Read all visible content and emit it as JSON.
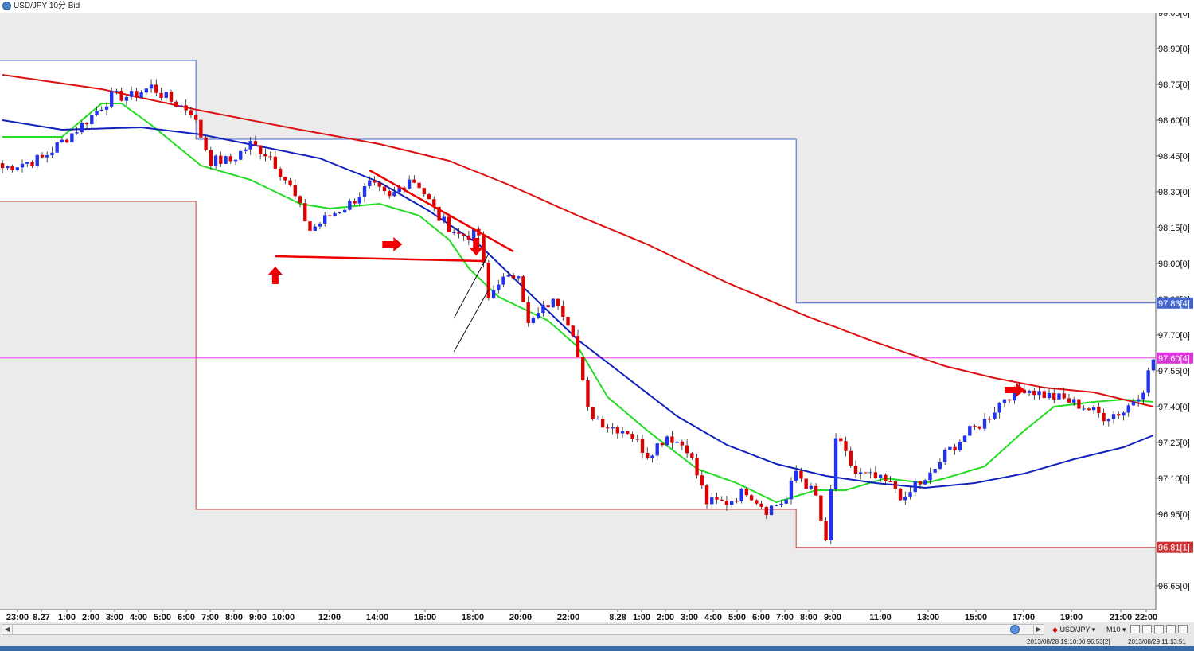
{
  "window": {
    "title": "USD/JPY 10分 Bid"
  },
  "colors": {
    "background": "#ffffff",
    "shaded_zone": "#ebebeb",
    "up_candle": "#2233ee",
    "down_candle": "#dd0000",
    "ma_fast": "#22dd22",
    "ma_mid": "#1122bb",
    "ma_slow": "#dd1111",
    "bid_line": "#ee44ee",
    "annotation": "#ee0000",
    "box_upper": "#4466cc",
    "box_lower": "#cc4444"
  },
  "price_axis": {
    "labels": [
      "98.90[0]",
      "98.75[0]",
      "98.60[0]",
      "98.45[0]",
      "98.30[0]",
      "98.15[0]",
      "98.00[0]",
      "97.70[0]",
      "97.55[0]",
      "97.40[0]",
      "97.25[0]",
      "97.10[0]",
      "96.95[0]",
      "96.65[0]"
    ],
    "partial_labels": [
      "99.05[0]",
      "97.85[0]"
    ],
    "markers": [
      {
        "label": "97.83[4]",
        "type": "upper-box",
        "color": "#4466cc"
      },
      {
        "label": "97.60[4]",
        "type": "bid",
        "color": "#dd33dd"
      },
      {
        "label": "96.81[1]",
        "type": "lower-box",
        "color": "#cc3333"
      }
    ]
  },
  "time_axis": {
    "labels": [
      "23:00",
      "8.27",
      "1:00",
      "2:00",
      "3:00",
      "4:00",
      "5:00",
      "6:00",
      "7:00",
      "8:00",
      "9:00",
      "10:00",
      "12:00",
      "14:00",
      "16:00",
      "18:00",
      "20:00",
      "22:00",
      "8.28",
      "1:00",
      "2:00",
      "3:00",
      "4:00",
      "5:00",
      "6:00",
      "7:00",
      "8:00",
      "9:00",
      "11:00",
      "13:00",
      "15:00",
      "17:00",
      "19:00",
      "21:00",
      "22:00"
    ]
  },
  "status_bar": {
    "symbol": "USD/JPY",
    "period": "M10",
    "info_left": "2013/08/28 19:10:00  96.53[2]",
    "info_right": "2013/08/29 11:13:51"
  },
  "chart_data": {
    "type": "candlestick",
    "symbol": "USD/JPY",
    "timeframe": "10分",
    "price_type": "Bid",
    "ylim": [
      96.55,
      99.05
    ],
    "current_bid": 97.604,
    "box_levels": {
      "day1_high": 98.85,
      "day1_low": 98.26,
      "day2_high": 98.52,
      "day2_low": 96.97,
      "day3_high": 97.834,
      "day3_low": 96.811
    },
    "price_path": [
      [
        0,
        98.4
      ],
      [
        8,
        98.44
      ],
      [
        16,
        98.58
      ],
      [
        22,
        98.7
      ],
      [
        26,
        98.7
      ],
      [
        30,
        98.74
      ],
      [
        34,
        98.68
      ],
      [
        38,
        98.64
      ],
      [
        42,
        98.43
      ],
      [
        46,
        98.43
      ],
      [
        50,
        98.5
      ],
      [
        54,
        98.45
      ],
      [
        58,
        98.32
      ],
      [
        62,
        98.14
      ],
      [
        66,
        98.2
      ],
      [
        70,
        98.25
      ],
      [
        74,
        98.33
      ],
      [
        78,
        98.27
      ],
      [
        82,
        98.36
      ],
      [
        84,
        98.33
      ],
      [
        88,
        98.19
      ],
      [
        92,
        98.12
      ],
      [
        96,
        98.12
      ],
      [
        98,
        97.85
      ],
      [
        100,
        97.93
      ],
      [
        102,
        97.93
      ],
      [
        104,
        97.97
      ],
      [
        106,
        97.74
      ],
      [
        110,
        97.83
      ],
      [
        112,
        97.84
      ],
      [
        115,
        97.72
      ],
      [
        118,
        97.38
      ],
      [
        122,
        97.32
      ],
      [
        126,
        97.3
      ],
      [
        130,
        97.2
      ],
      [
        134,
        97.28
      ],
      [
        138,
        97.23
      ],
      [
        142,
        97.0
      ],
      [
        146,
        97.0
      ],
      [
        150,
        97.05
      ],
      [
        154,
        96.97
      ],
      [
        158,
        97.01
      ],
      [
        160,
        97.13
      ],
      [
        164,
        97.02
      ],
      [
        166,
        96.82
      ],
      [
        168,
        97.27
      ],
      [
        172,
        97.12
      ],
      [
        176,
        97.1
      ],
      [
        180,
        97.06
      ],
      [
        182,
        97.0
      ],
      [
        184,
        97.08
      ],
      [
        186,
        97.08
      ],
      [
        190,
        97.2
      ],
      [
        194,
        97.28
      ],
      [
        198,
        97.34
      ],
      [
        202,
        97.44
      ],
      [
        206,
        97.48
      ],
      [
        210,
        97.45
      ],
      [
        214,
        97.43
      ],
      [
        218,
        97.4
      ],
      [
        222,
        97.36
      ],
      [
        226,
        97.38
      ],
      [
        230,
        97.48
      ],
      [
        232,
        97.6
      ]
    ],
    "moving_averages": [
      {
        "name": "MA fast",
        "color": "#22dd22",
        "points": [
          [
            0,
            98.53
          ],
          [
            12,
            98.53
          ],
          [
            20,
            98.67
          ],
          [
            24,
            98.67
          ],
          [
            30,
            98.58
          ],
          [
            40,
            98.41
          ],
          [
            50,
            98.35
          ],
          [
            60,
            98.25
          ],
          [
            66,
            98.23
          ],
          [
            76,
            98.25
          ],
          [
            84,
            98.2
          ],
          [
            90,
            98.1
          ],
          [
            94,
            97.98
          ],
          [
            100,
            97.86
          ],
          [
            110,
            97.76
          ],
          [
            116,
            97.65
          ],
          [
            122,
            97.44
          ],
          [
            130,
            97.3
          ],
          [
            140,
            97.14
          ],
          [
            148,
            97.08
          ],
          [
            156,
            97.0
          ],
          [
            164,
            97.05
          ],
          [
            170,
            97.05
          ],
          [
            178,
            97.1
          ],
          [
            186,
            97.08
          ],
          [
            190,
            97.1
          ],
          [
            198,
            97.15
          ],
          [
            206,
            97.3
          ],
          [
            212,
            97.4
          ],
          [
            220,
            97.42
          ],
          [
            226,
            97.43
          ],
          [
            232,
            97.42
          ]
        ]
      },
      {
        "name": "MA mid",
        "color": "#1122bb",
        "points": [
          [
            0,
            98.6
          ],
          [
            12,
            98.56
          ],
          [
            28,
            98.57
          ],
          [
            40,
            98.54
          ],
          [
            52,
            98.49
          ],
          [
            64,
            98.44
          ],
          [
            76,
            98.34
          ],
          [
            86,
            98.22
          ],
          [
            96,
            98.08
          ],
          [
            106,
            97.88
          ],
          [
            116,
            97.68
          ],
          [
            126,
            97.52
          ],
          [
            136,
            97.36
          ],
          [
            146,
            97.24
          ],
          [
            156,
            97.16
          ],
          [
            166,
            97.11
          ],
          [
            176,
            97.08
          ],
          [
            186,
            97.06
          ],
          [
            196,
            97.08
          ],
          [
            206,
            97.12
          ],
          [
            216,
            97.18
          ],
          [
            226,
            97.23
          ],
          [
            232,
            97.28
          ]
        ]
      },
      {
        "name": "MA slow",
        "color": "#dd1111",
        "points": [
          [
            0,
            98.79
          ],
          [
            20,
            98.73
          ],
          [
            40,
            98.64
          ],
          [
            60,
            98.56
          ],
          [
            76,
            98.5
          ],
          [
            90,
            98.43
          ],
          [
            102,
            98.33
          ],
          [
            116,
            98.2
          ],
          [
            130,
            98.08
          ],
          [
            146,
            97.92
          ],
          [
            162,
            97.78
          ],
          [
            176,
            97.67
          ],
          [
            190,
            97.57
          ],
          [
            200,
            97.52
          ],
          [
            210,
            97.48
          ],
          [
            220,
            97.46
          ],
          [
            232,
            97.4
          ]
        ]
      }
    ],
    "annotations": [
      {
        "type": "horizontal-neckline",
        "price": 98.02
      },
      {
        "type": "descending-trendline",
        "from_price": 98.39,
        "to_price": 98.05
      },
      {
        "type": "arrow-up"
      },
      {
        "type": "arrow-right"
      },
      {
        "type": "arrow-down"
      },
      {
        "type": "arrow-right"
      },
      {
        "type": "parallel-channel"
      }
    ]
  }
}
